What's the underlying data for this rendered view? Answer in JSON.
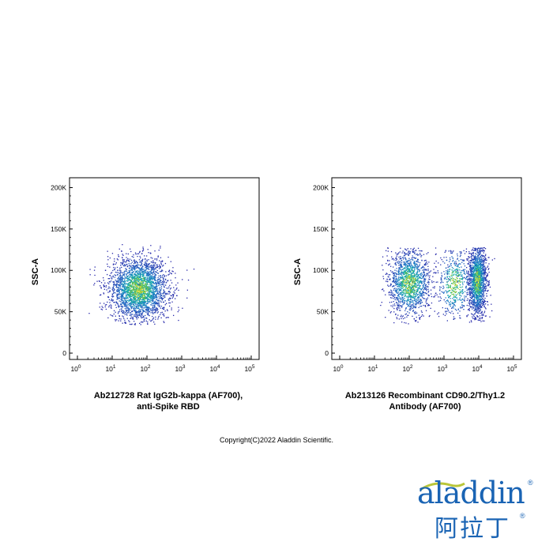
{
  "chart_data": [
    {
      "type": "scatter",
      "title": "",
      "xlabel": "Ab212728 Rat IgG2b-kappa (AF700),",
      "xlabel_line2": "anti-Spike RBD",
      "ylabel": "SSC-A",
      "x_scale": "log",
      "x_ticks": [
        {
          "base": "10",
          "exp": "0"
        },
        {
          "base": "10",
          "exp": "1"
        },
        {
          "base": "10",
          "exp": "2"
        },
        {
          "base": "10",
          "exp": "3"
        },
        {
          "base": "10",
          "exp": "4"
        },
        {
          "base": "10",
          "exp": "5"
        }
      ],
      "y_ticks": [
        "0",
        "50K",
        "100K",
        "150K",
        "200K"
      ],
      "y_tick_values": [
        0,
        50000,
        100000,
        150000,
        200000
      ],
      "ylim": [
        0,
        210000
      ],
      "xlim_decades": [
        0,
        5
      ],
      "grid": false,
      "colormap": "density (blue → cyan → green → yellow)",
      "populations": [
        {
          "name": "",
          "x_center_log10": 1.75,
          "x_spread_log10": 0.42,
          "y_center": 78000,
          "y_spread": 19000,
          "y_min": 35000,
          "y_max": 132000,
          "count": 2600
        }
      ]
    },
    {
      "type": "scatter",
      "title": "",
      "xlabel": "Ab213126 Recombinant CD90.2/Thy1.2",
      "xlabel_line2": "Antibody (AF700)",
      "ylabel": "SSC-A",
      "x_scale": "log",
      "x_ticks": [
        {
          "base": "10",
          "exp": "0"
        },
        {
          "base": "10",
          "exp": "1"
        },
        {
          "base": "10",
          "exp": "2"
        },
        {
          "base": "10",
          "exp": "3"
        },
        {
          "base": "10",
          "exp": "4"
        },
        {
          "base": "10",
          "exp": "5"
        }
      ],
      "y_ticks": [
        "0",
        "50K",
        "100K",
        "150K",
        "200K"
      ],
      "y_tick_values": [
        0,
        50000,
        100000,
        150000,
        200000
      ],
      "ylim": [
        0,
        210000
      ],
      "xlim_decades": [
        0,
        5
      ],
      "grid": false,
      "colormap": "density (blue → cyan → green → yellow)",
      "populations": [
        {
          "name": "",
          "x_center_log10": 2.0,
          "x_spread_log10": 0.3,
          "y_center": 85000,
          "y_spread": 20000,
          "y_min": 35000,
          "y_max": 128000,
          "count": 1400
        },
        {
          "name": "",
          "x_center_log10": 3.95,
          "x_spread_log10": 0.13,
          "y_center": 88000,
          "y_spread": 21000,
          "y_min": 38000,
          "y_max": 128000,
          "count": 1500
        },
        {
          "name": "",
          "x_center_log10": 3.3,
          "x_spread_log10": 0.25,
          "y_center": 84000,
          "y_spread": 22000,
          "y_min": 38000,
          "y_max": 125000,
          "count": 500
        }
      ]
    }
  ],
  "copyright": "Copyright(C)2022 Aladdin Scientific.",
  "logo": {
    "latin": "aladdin",
    "registered": "®",
    "cjk": "阿拉丁",
    "cjk_registered": "®",
    "color": "#1a64b4",
    "accent": "#b9c639"
  }
}
